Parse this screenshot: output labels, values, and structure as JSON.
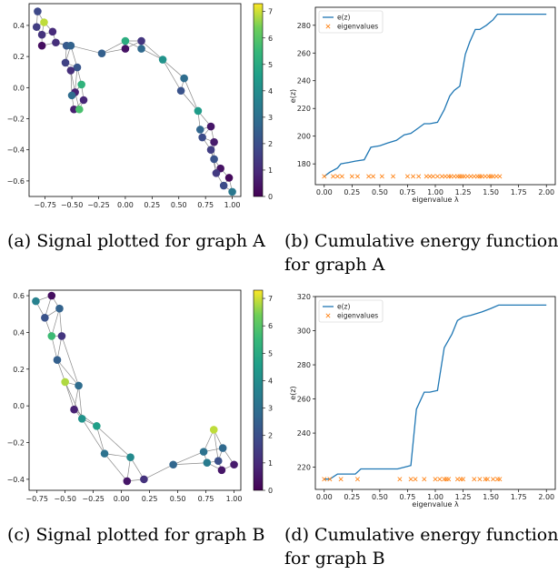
{
  "captions": {
    "a": "(a) Signal plotted for graph A",
    "b_line1": "(b) Cumulative energy function",
    "b_line2": "for graph A",
    "c": "(c) Signal plotted for graph B",
    "d_line1": "(d) Cumulative energy function",
    "d_line2": "for graph B"
  },
  "colors": {
    "line": "#1f77b4",
    "marker": "#ff7f0e",
    "edge": "#888888"
  },
  "colorbar_ticks": [
    "0",
    "1",
    "2",
    "3",
    "4",
    "5",
    "6",
    "7"
  ],
  "chart_data": [
    {
      "id": "graphA",
      "type": "scatter",
      "title": "",
      "xlim": [
        -0.9,
        1.08
      ],
      "ylim": [
        -0.7,
        0.54
      ],
      "xticks": [
        -0.75,
        -0.5,
        -0.25,
        0.0,
        0.25,
        0.5,
        0.75,
        1.0
      ],
      "xtick_labels": [
        "−0.75",
        "−0.50",
        "−0.25",
        "0.00",
        "0.25",
        "0.50",
        "0.75",
        "1.00"
      ],
      "yticks": [
        -0.6,
        -0.4,
        -0.2,
        0.0,
        0.2,
        0.4
      ],
      "ytick_labels": [
        "−0.6",
        "−0.4",
        "−0.2",
        "0.0",
        "0.2",
        "0.4"
      ],
      "colorbar_range": [
        0,
        7.3
      ],
      "nodes": [
        {
          "x": -0.82,
          "y": 0.49,
          "v": 1.8
        },
        {
          "x": -0.83,
          "y": 0.39,
          "v": 1.5
        },
        {
          "x": -0.76,
          "y": 0.42,
          "v": 6.9
        },
        {
          "x": -0.78,
          "y": 0.34,
          "v": 1.2
        },
        {
          "x": -0.68,
          "y": 0.36,
          "v": 1.0
        },
        {
          "x": -0.78,
          "y": 0.27,
          "v": 0.3
        },
        {
          "x": -0.65,
          "y": 0.29,
          "v": 1.1
        },
        {
          "x": -0.55,
          "y": 0.27,
          "v": 2.3
        },
        {
          "x": -0.51,
          "y": 0.27,
          "v": 2.6
        },
        {
          "x": -0.56,
          "y": 0.16,
          "v": 1.6
        },
        {
          "x": -0.45,
          "y": 0.13,
          "v": 2.2
        },
        {
          "x": -0.51,
          "y": 0.11,
          "v": 1.1
        },
        {
          "x": -0.47,
          "y": -0.03,
          "v": 0.8
        },
        {
          "x": -0.5,
          "y": -0.05,
          "v": 2.9
        },
        {
          "x": -0.41,
          "y": 0.02,
          "v": 5.3
        },
        {
          "x": -0.39,
          "y": -0.08,
          "v": 0.9
        },
        {
          "x": -0.48,
          "y": -0.14,
          "v": 0.7
        },
        {
          "x": -0.43,
          "y": -0.14,
          "v": 5.8
        },
        {
          "x": -0.22,
          "y": 0.22,
          "v": 2.5
        },
        {
          "x": 0.0,
          "y": 0.3,
          "v": 5.1
        },
        {
          "x": 0.0,
          "y": 0.25,
          "v": 0.4
        },
        {
          "x": 0.15,
          "y": 0.3,
          "v": 1.3
        },
        {
          "x": 0.15,
          "y": 0.25,
          "v": 2.8
        },
        {
          "x": 0.35,
          "y": 0.18,
          "v": 4.2
        },
        {
          "x": 0.55,
          "y": 0.06,
          "v": 2.9
        },
        {
          "x": 0.52,
          "y": -0.02,
          "v": 2.1
        },
        {
          "x": 0.68,
          "y": -0.15,
          "v": 4.5
        },
        {
          "x": 0.7,
          "y": -0.27,
          "v": 2.7
        },
        {
          "x": 0.8,
          "y": -0.25,
          "v": 0.5
        },
        {
          "x": 0.72,
          "y": -0.32,
          "v": 1.9
        },
        {
          "x": 0.83,
          "y": -0.35,
          "v": 0.6
        },
        {
          "x": 0.8,
          "y": -0.4,
          "v": 1.5
        },
        {
          "x": 0.83,
          "y": -0.46,
          "v": 2.1
        },
        {
          "x": 0.89,
          "y": -0.52,
          "v": 0.4
        },
        {
          "x": 0.85,
          "y": -0.55,
          "v": 1.4
        },
        {
          "x": 0.97,
          "y": -0.58,
          "v": 0.2
        },
        {
          "x": 0.92,
          "y": -0.63,
          "v": 1.9
        },
        {
          "x": 1.0,
          "y": -0.67,
          "v": 3.3
        }
      ],
      "edges": [
        [
          0,
          1
        ],
        [
          0,
          2
        ],
        [
          1,
          2
        ],
        [
          1,
          3
        ],
        [
          2,
          3
        ],
        [
          2,
          4
        ],
        [
          3,
          4
        ],
        [
          3,
          5
        ],
        [
          4,
          6
        ],
        [
          5,
          6
        ],
        [
          6,
          7
        ],
        [
          6,
          8
        ],
        [
          7,
          8
        ],
        [
          7,
          9
        ],
        [
          8,
          9
        ],
        [
          8,
          10
        ],
        [
          9,
          10
        ],
        [
          9,
          11
        ],
        [
          10,
          11
        ],
        [
          10,
          14
        ],
        [
          11,
          12
        ],
        [
          11,
          13
        ],
        [
          12,
          13
        ],
        [
          12,
          14
        ],
        [
          13,
          16
        ],
        [
          14,
          15
        ],
        [
          15,
          16
        ],
        [
          15,
          17
        ],
        [
          16,
          17
        ],
        [
          13,
          14
        ],
        [
          8,
          18
        ],
        [
          18,
          19
        ],
        [
          18,
          20
        ],
        [
          19,
          20
        ],
        [
          19,
          21
        ],
        [
          20,
          21
        ],
        [
          19,
          22
        ],
        [
          21,
          22
        ],
        [
          22,
          23
        ],
        [
          21,
          23
        ],
        [
          23,
          24
        ],
        [
          23,
          25
        ],
        [
          24,
          25
        ],
        [
          24,
          26
        ],
        [
          25,
          26
        ],
        [
          26,
          27
        ],
        [
          26,
          28
        ],
        [
          27,
          28
        ],
        [
          27,
          29
        ],
        [
          28,
          29
        ],
        [
          28,
          30
        ],
        [
          29,
          30
        ],
        [
          29,
          31
        ],
        [
          30,
          31
        ],
        [
          30,
          32
        ],
        [
          31,
          32
        ],
        [
          32,
          33
        ],
        [
          31,
          34
        ],
        [
          32,
          34
        ],
        [
          33,
          34
        ],
        [
          33,
          35
        ],
        [
          34,
          36
        ],
        [
          35,
          36
        ],
        [
          35,
          37
        ],
        [
          36,
          37
        ],
        [
          17,
          12
        ],
        [
          10,
          12
        ]
      ]
    },
    {
      "id": "energyA",
      "type": "line",
      "title": "",
      "xlabel": "eigenvalue λ",
      "ylabel": "e(z)",
      "xlim": [
        -0.08,
        2.08
      ],
      "ylim": [
        165,
        293
      ],
      "xticks": [
        0.0,
        0.25,
        0.5,
        0.75,
        1.0,
        1.25,
        1.5,
        1.75,
        2.0
      ],
      "xtick_labels": [
        "0.00",
        "0.25",
        "0.50",
        "0.75",
        "1.00",
        "1.25",
        "1.50",
        "1.75",
        "2.00"
      ],
      "yticks": [
        180,
        200,
        220,
        240,
        260,
        280
      ],
      "ytick_labels": [
        "180",
        "200",
        "220",
        "240",
        "260",
        "280"
      ],
      "legend": [
        "e(z)",
        "eigenvalues"
      ],
      "legend_position": "top-left",
      "series": [
        {
          "name": "e(z)",
          "x": [
            0.0,
            0.05,
            0.12,
            0.15,
            0.22,
            0.28,
            0.36,
            0.42,
            0.5,
            0.57,
            0.65,
            0.72,
            0.78,
            0.85,
            0.9,
            0.95,
            1.02,
            1.08,
            1.13,
            1.17,
            1.22,
            1.27,
            1.31,
            1.36,
            1.4,
            1.46,
            1.52,
            1.56,
            1.65,
            2.0
          ],
          "y": [
            171,
            174,
            177,
            180,
            181,
            182,
            183,
            192,
            193,
            195,
            197,
            201,
            202,
            206,
            209,
            209,
            210,
            219,
            229,
            233,
            236,
            259,
            268,
            277,
            277,
            280,
            284,
            288,
            288,
            288
          ]
        },
        {
          "name": "eigenvalues",
          "x": [
            0.0,
            0.08,
            0.12,
            0.16,
            0.25,
            0.3,
            0.4,
            0.44,
            0.52,
            0.62,
            0.75,
            0.8,
            0.85,
            0.92,
            0.95,
            0.98,
            1.02,
            1.06,
            1.09,
            1.12,
            1.14,
            1.17,
            1.2,
            1.22,
            1.24,
            1.26,
            1.29,
            1.32,
            1.35,
            1.38,
            1.4,
            1.42,
            1.45,
            1.48,
            1.5,
            1.52,
            1.55,
            1.58
          ],
          "y_const": 171
        }
      ]
    },
    {
      "id": "graphB",
      "type": "scatter",
      "title": "",
      "xlim": [
        -0.82,
        1.06
      ],
      "ylim": [
        -0.46,
        0.63
      ],
      "xticks": [
        -0.75,
        -0.5,
        -0.25,
        0.0,
        0.25,
        0.5,
        0.75,
        1.0
      ],
      "xtick_labels": [
        "−0.75",
        "−0.50",
        "−0.25",
        "0.00",
        "0.25",
        "0.50",
        "0.75",
        "1.00"
      ],
      "yticks": [
        -0.4,
        -0.2,
        0.0,
        0.2,
        0.4,
        0.6
      ],
      "ytick_labels": [
        "−0.4",
        "−0.2",
        "0.0",
        "0.2",
        "0.4",
        "0.6"
      ],
      "colorbar_range": [
        0,
        7.3
      ],
      "nodes": [
        {
          "x": -0.76,
          "y": 0.57,
          "v": 3.6
        },
        {
          "x": -0.62,
          "y": 0.6,
          "v": 0.3
        },
        {
          "x": -0.68,
          "y": 0.48,
          "v": 2.1
        },
        {
          "x": -0.55,
          "y": 0.53,
          "v": 2.6
        },
        {
          "x": -0.62,
          "y": 0.38,
          "v": 5.6
        },
        {
          "x": -0.53,
          "y": 0.38,
          "v": 1.3
        },
        {
          "x": -0.57,
          "y": 0.25,
          "v": 2.5
        },
        {
          "x": -0.5,
          "y": 0.13,
          "v": 6.8
        },
        {
          "x": -0.38,
          "y": 0.11,
          "v": 2.9
        },
        {
          "x": -0.42,
          "y": -0.02,
          "v": 0.8
        },
        {
          "x": -0.35,
          "y": -0.07,
          "v": 4.2
        },
        {
          "x": -0.22,
          "y": -0.11,
          "v": 4.6
        },
        {
          "x": -0.15,
          "y": -0.26,
          "v": 3.1
        },
        {
          "x": 0.08,
          "y": -0.28,
          "v": 3.9
        },
        {
          "x": 0.05,
          "y": -0.41,
          "v": 0.5
        },
        {
          "x": 0.2,
          "y": -0.4,
          "v": 1.2
        },
        {
          "x": 0.46,
          "y": -0.32,
          "v": 2.7
        },
        {
          "x": 0.73,
          "y": -0.25,
          "v": 3.1
        },
        {
          "x": 0.82,
          "y": -0.13,
          "v": 6.9
        },
        {
          "x": 0.9,
          "y": -0.23,
          "v": 2.8
        },
        {
          "x": 0.86,
          "y": -0.3,
          "v": 2.0
        },
        {
          "x": 0.89,
          "y": -0.35,
          "v": 0.5
        },
        {
          "x": 0.76,
          "y": -0.31,
          "v": 3.4
        },
        {
          "x": 1.0,
          "y": -0.32,
          "v": 0.6
        }
      ],
      "edges": [
        [
          0,
          1
        ],
        [
          0,
          2
        ],
        [
          1,
          2
        ],
        [
          1,
          3
        ],
        [
          2,
          3
        ],
        [
          2,
          4
        ],
        [
          3,
          4
        ],
        [
          3,
          5
        ],
        [
          4,
          5
        ],
        [
          4,
          6
        ],
        [
          5,
          6
        ],
        [
          5,
          8
        ],
        [
          6,
          7
        ],
        [
          6,
          8
        ],
        [
          7,
          8
        ],
        [
          7,
          9
        ],
        [
          8,
          9
        ],
        [
          8,
          10
        ],
        [
          9,
          10
        ],
        [
          9,
          11
        ],
        [
          10,
          11
        ],
        [
          10,
          12
        ],
        [
          11,
          12
        ],
        [
          11,
          13
        ],
        [
          12,
          13
        ],
        [
          12,
          14
        ],
        [
          13,
          14
        ],
        [
          13,
          15
        ],
        [
          14,
          15
        ],
        [
          15,
          16
        ],
        [
          16,
          17
        ],
        [
          16,
          22
        ],
        [
          17,
          18
        ],
        [
          17,
          19
        ],
        [
          17,
          22
        ],
        [
          18,
          19
        ],
        [
          18,
          20
        ],
        [
          19,
          20
        ],
        [
          19,
          23
        ],
        [
          20,
          21
        ],
        [
          20,
          22
        ],
        [
          21,
          22
        ],
        [
          21,
          23
        ],
        [
          7,
          10
        ]
      ]
    },
    {
      "id": "energyB",
      "type": "line",
      "title": "",
      "xlabel": "eigenvalue λ",
      "ylabel": "e(z)",
      "xlim": [
        -0.08,
        2.08
      ],
      "ylim": [
        207,
        320
      ],
      "xticks": [
        0.0,
        0.25,
        0.5,
        0.75,
        1.0,
        1.25,
        1.5,
        1.75,
        2.0
      ],
      "xtick_labels": [
        "0.00",
        "0.25",
        "0.50",
        "0.75",
        "1.00",
        "1.25",
        "1.50",
        "1.75",
        "2.00"
      ],
      "yticks": [
        220,
        240,
        260,
        280,
        300,
        320
      ],
      "ytick_labels": [
        "220",
        "240",
        "260",
        "280",
        "300",
        "320"
      ],
      "legend": [
        "e(z)",
        "eigenvalues"
      ],
      "legend_position": "top-left",
      "series": [
        {
          "name": "e(z)",
          "x": [
            0.0,
            0.05,
            0.12,
            0.2,
            0.28,
            0.33,
            0.45,
            0.55,
            0.66,
            0.72,
            0.78,
            0.83,
            0.9,
            0.95,
            1.02,
            1.08,
            1.15,
            1.2,
            1.25,
            1.32,
            1.42,
            1.5,
            1.57,
            1.65,
            2.0
          ],
          "y": [
            213,
            213,
            216,
            216,
            216,
            219,
            219,
            219,
            219,
            220,
            221,
            254,
            264,
            264,
            265,
            290,
            298,
            306,
            308,
            309,
            311,
            313,
            315,
            315,
            315
          ]
        },
        {
          "name": "eigenvalues",
          "x": [
            0.0,
            0.05,
            0.15,
            0.3,
            0.68,
            0.78,
            0.82,
            0.9,
            1.0,
            1.04,
            1.08,
            1.1,
            1.12,
            1.2,
            1.23,
            1.25,
            1.35,
            1.4,
            1.45,
            1.47,
            1.52,
            1.56,
            1.58
          ],
          "y_const": 213
        }
      ]
    }
  ]
}
